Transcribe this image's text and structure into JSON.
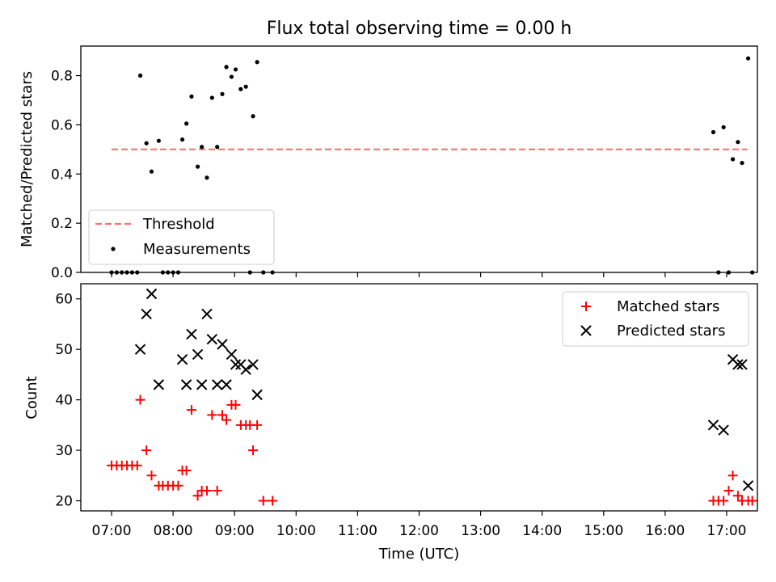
{
  "figure": {
    "title": "Flux total observing time = 0.00 h"
  },
  "colors": {
    "threshold": "#ff7070",
    "measurements": "#000000",
    "matched": "#ff0000",
    "predicted": "#000000",
    "axes": "#000000",
    "background": "#ffffff"
  },
  "chart_data": [
    {
      "type": "scatter",
      "panel": "top",
      "title": "Flux total observing time = 0.00 h",
      "xlabel": "",
      "ylabel": "Matched/Predicted stars",
      "xlim": [
        "06:30",
        "17:30"
      ],
      "ylim": [
        0,
        0.92
      ],
      "yticks": [
        0.0,
        0.2,
        0.4,
        0.6,
        0.8
      ],
      "ytick_labels": [
        "0.0",
        "0.2",
        "0.4",
        "0.6",
        "0.8"
      ],
      "grid": false,
      "legend_position": "lower-left",
      "series": [
        {
          "name": "Threshold",
          "kind": "line",
          "style": "dashed",
          "x": [
            "07:00",
            "17:20"
          ],
          "y": [
            0.5,
            0.5
          ]
        },
        {
          "name": "Measurements",
          "kind": "scatter",
          "marker": "dot",
          "x": [
            "07:00",
            "07:05",
            "07:10",
            "07:15",
            "07:20",
            "07:25",
            "07:28",
            "07:34",
            "07:39",
            "07:46",
            "07:50",
            "07:55",
            "08:00",
            "08:05",
            "08:09",
            "08:13",
            "08:18",
            "08:24",
            "08:28",
            "08:33",
            "08:38",
            "08:43",
            "08:48",
            "08:52",
            "08:57",
            "09:01",
            "09:06",
            "09:11",
            "09:15",
            "09:18",
            "09:22",
            "09:28",
            "09:37",
            "16:47",
            "16:52",
            "16:57",
            "17:02",
            "17:06",
            "17:11",
            "17:15",
            "17:21",
            "17:25"
          ],
          "y": [
            0.0,
            0.0,
            0.0,
            0.0,
            0.0,
            0.0,
            0.8,
            0.525,
            0.41,
            0.535,
            0.0,
            0.0,
            0.0,
            0.0,
            0.54,
            0.605,
            0.715,
            0.43,
            0.51,
            0.385,
            0.71,
            0.51,
            0.725,
            0.835,
            0.795,
            0.825,
            0.745,
            0.755,
            0.0,
            0.635,
            0.855,
            0.0,
            0.0,
            0.57,
            0.0,
            0.59,
            0.0,
            0.46,
            0.53,
            0.445,
            0.87,
            0.0
          ]
        }
      ]
    },
    {
      "type": "scatter",
      "panel": "bottom",
      "xlabel": "Time (UTC)",
      "ylabel": "Count",
      "xlim": [
        "06:30",
        "17:30"
      ],
      "ylim": [
        18,
        63
      ],
      "yticks": [
        20,
        30,
        40,
        50,
        60
      ],
      "ytick_labels": [
        "20",
        "30",
        "40",
        "50",
        "60"
      ],
      "xticks": [
        "07:00",
        "08:00",
        "09:00",
        "10:00",
        "11:00",
        "12:00",
        "13:00",
        "14:00",
        "15:00",
        "16:00",
        "17:00"
      ],
      "xtick_labels": [
        "07:00",
        "08:00",
        "09:00",
        "10:00",
        "11:00",
        "12:00",
        "13:00",
        "14:00",
        "15:00",
        "16:00",
        "17:00"
      ],
      "grid": false,
      "legend_position": "top-right",
      "series": [
        {
          "name": "Matched stars",
          "kind": "scatter",
          "marker": "plus",
          "x": [
            "07:00",
            "07:05",
            "07:10",
            "07:15",
            "07:20",
            "07:25",
            "07:28",
            "07:34",
            "07:39",
            "07:46",
            "07:50",
            "07:55",
            "08:00",
            "08:05",
            "08:09",
            "08:13",
            "08:18",
            "08:24",
            "08:28",
            "08:33",
            "08:38",
            "08:43",
            "08:48",
            "08:52",
            "08:57",
            "09:01",
            "09:06",
            "09:11",
            "09:15",
            "09:18",
            "09:22",
            "09:28",
            "09:37",
            "16:47",
            "16:52",
            "16:57",
            "17:02",
            "17:06",
            "17:11",
            "17:15",
            "17:21",
            "17:25"
          ],
          "y": [
            27,
            27,
            27,
            27,
            27,
            27,
            40,
            30,
            25,
            23,
            23,
            23,
            23,
            23,
            26,
            26,
            38,
            21,
            22,
            22,
            37,
            22,
            37,
            36,
            39,
            39,
            35,
            35,
            35,
            30,
            35,
            20,
            20,
            20,
            20,
            20,
            22,
            25,
            21,
            20,
            20,
            20
          ]
        },
        {
          "name": "Predicted stars",
          "kind": "scatter",
          "marker": "x",
          "x": [
            "07:28",
            "07:34",
            "07:39",
            "07:46",
            "08:09",
            "08:13",
            "08:18",
            "08:24",
            "08:28",
            "08:33",
            "08:38",
            "08:43",
            "08:48",
            "08:52",
            "08:57",
            "09:01",
            "09:06",
            "09:11",
            "09:18",
            "09:22",
            "16:47",
            "16:57",
            "17:06",
            "17:11",
            "17:15",
            "17:21"
          ],
          "y": [
            50,
            57,
            61,
            43,
            48,
            43,
            53,
            49,
            43,
            57,
            52,
            43,
            51,
            43,
            49,
            47,
            47,
            46,
            47,
            41,
            35,
            34,
            48,
            47,
            47,
            23
          ]
        }
      ]
    }
  ]
}
